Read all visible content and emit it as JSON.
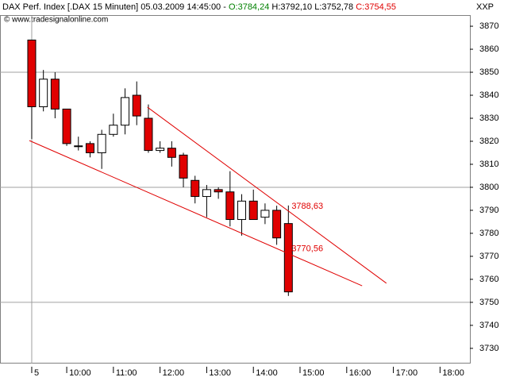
{
  "header": {
    "instrument": "DAX Perf. Index [.DAX  15 Minuten] 05.03.2009 14:45:00 -",
    "open": "O:3784,24",
    "high": "H:3792,10",
    "low": "L:3752,78",
    "close": "C:3754,55",
    "symbol": "XXP",
    "copyright": "© www.tradesignalonline.com"
  },
  "chart_data": {
    "type": "candlestick",
    "x": [
      9.25,
      9.5,
      9.75,
      10,
      10.25,
      10.5,
      10.75,
      11,
      11.25,
      11.5,
      11.75,
      12,
      12.25,
      12.5,
      12.75,
      13,
      13.25,
      13.5,
      13.75,
      14,
      14.25,
      14.5,
      14.75
    ],
    "open": [
      3864,
      3835,
      3847,
      3834,
      3818,
      3819,
      3815,
      3823,
      3827,
      3840,
      3830,
      3816,
      3817,
      3814,
      3803,
      3796,
      3799,
      3798,
      3786,
      3794,
      3787,
      3790,
      3784.24
    ],
    "high": [
      3864,
      3851,
      3850,
      3834,
      3822,
      3820,
      3825,
      3832,
      3843,
      3846,
      3836,
      3820,
      3820,
      3815,
      3805,
      3801,
      3800,
      3807,
      3797,
      3799,
      3793,
      3792,
      3792.1
    ],
    "low": [
      3821,
      3833,
      3830,
      3818,
      3816,
      3813,
      3808,
      3822,
      3823,
      3827,
      3815,
      3815,
      3809,
      3800,
      3793,
      3787,
      3795,
      3783,
      3779,
      3786,
      3784,
      3775,
      3752.78
    ],
    "close": [
      3835,
      3847,
      3834,
      3819,
      3818,
      3815,
      3823,
      3827,
      3839,
      3831,
      3816,
      3817,
      3813,
      3804,
      3796,
      3799,
      3798,
      3786,
      3794,
      3786,
      3790,
      3778,
      3754.55
    ],
    "up_color": "#ffffff",
    "down_color": "#e00000",
    "xlim": [
      8.57,
      18.64
    ],
    "ylim": [
      3723.4,
      3874.5
    ],
    "xticks": [
      {
        "value": 9.25,
        "label": "5"
      },
      {
        "value": 10,
        "label": "10:00"
      },
      {
        "value": 11,
        "label": "11:00"
      },
      {
        "value": 12,
        "label": "12:00"
      },
      {
        "value": 13,
        "label": "13:00"
      },
      {
        "value": 14,
        "label": "14:00"
      },
      {
        "value": 15,
        "label": "15:00"
      },
      {
        "value": 16,
        "label": "16:00"
      },
      {
        "value": 17,
        "label": "17:00"
      },
      {
        "value": 18,
        "label": "18:00"
      }
    ],
    "yticks": [
      3730,
      3740,
      3750,
      3760,
      3770,
      3780,
      3790,
      3800,
      3810,
      3820,
      3830,
      3840,
      3850,
      3860,
      3870
    ],
    "grid_y": [
      3850,
      3800,
      3750
    ],
    "grid_x": [
      9.25
    ],
    "trendlines": [
      {
        "x": [
          11.73,
          16.85
        ],
        "y": [
          3834.8,
          3758.3
        ],
        "color": "#e00000",
        "label": "3788,63"
      },
      {
        "x": [
          9.2,
          16.33
        ],
        "y": [
          3820.3,
          3757.2
        ],
        "color": "#e00000",
        "label": "3770,56"
      }
    ]
  }
}
